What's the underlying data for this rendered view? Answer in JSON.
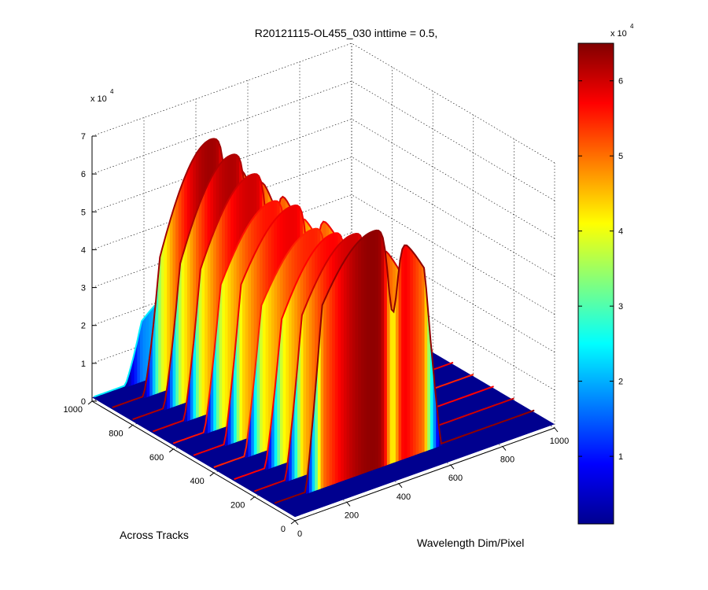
{
  "chart_data": {
    "type": "surface",
    "title": "R20121115-OL455_030 inttime = 0.5,",
    "xlabel": "Wavelength Dim/Pixel",
    "ylabel": "Across Tracks",
    "zlabel": "",
    "x_ticks": [
      "0",
      "200",
      "400",
      "600",
      "800",
      "1000"
    ],
    "y_ticks": [
      "0",
      "200",
      "400",
      "600",
      "800",
      "1000"
    ],
    "z_ticks": [
      "0",
      "1",
      "2",
      "3",
      "4",
      "5",
      "6",
      "7"
    ],
    "z_exponent_base": "x 10",
    "z_exponent_power": "4",
    "xlim": [
      0,
      1000
    ],
    "ylim": [
      0,
      1000
    ],
    "zlim": [
      0,
      70000
    ],
    "grid": true,
    "colormap": "jet",
    "colorbar": {
      "ticks": [
        "1",
        "2",
        "3",
        "4",
        "5",
        "6"
      ],
      "exponent_base": "x 10",
      "exponent_power": "4",
      "clim": [
        1000,
        65000
      ]
    },
    "across_track_ridges": [
      {
        "across_track": 100,
        "peak": 64000,
        "near_peak": 40000
      },
      {
        "across_track": 200,
        "peak": 60000,
        "near_peak": 33000
      },
      {
        "across_track": 300,
        "peak": 57000,
        "near_peak": 28000
      },
      {
        "across_track": 400,
        "peak": 55000,
        "near_peak": 30000
      },
      {
        "across_track": 500,
        "peak": 58000,
        "near_peak": 32000
      },
      {
        "across_track": 600,
        "peak": 56000,
        "near_peak": 28000
      },
      {
        "across_track": 700,
        "peak": 60000,
        "near_peak": 27000
      },
      {
        "across_track": 800,
        "peak": 62000,
        "near_peak": 23000
      },
      {
        "across_track": 900,
        "peak": 63000,
        "near_peak": 20000
      },
      {
        "across_track": 990,
        "peak": 24000,
        "near_peak": 12000
      }
    ]
  }
}
